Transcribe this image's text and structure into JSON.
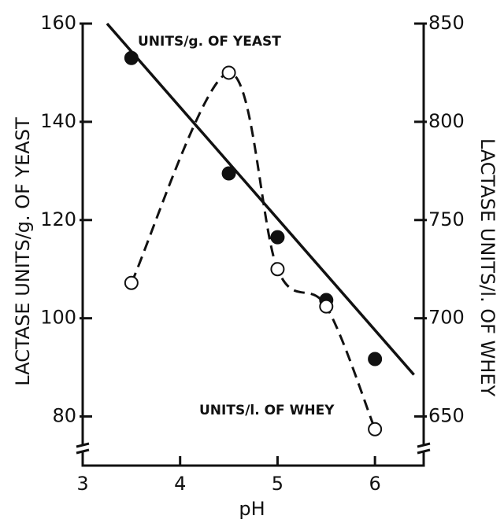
{
  "chart_data": {
    "type": "dual_axis_scatter",
    "x_label": "pH",
    "y_label": "LACTASE UNITS/g. OF YEAST",
    "y2_label": "LACTASE UNITS/l. OF WHEY",
    "xlim": [
      3,
      6.5
    ],
    "xticks": [
      3,
      4,
      5,
      6
    ],
    "ylim": [
      70,
      160
    ],
    "yticks": [
      80,
      100,
      120,
      140,
      160
    ],
    "y2lim": [
      625,
      850
    ],
    "y2ticks": [
      650,
      700,
      750,
      800,
      850
    ],
    "series": [
      {
        "name": "UNITS/g. OF YEAST",
        "color": "#111111",
        "marker": "filled",
        "line": "solid",
        "x": [
          3.5,
          4.5,
          5.0,
          5.5,
          6.0
        ],
        "values": [
          153,
          129.5,
          116.5,
          103.7,
          91.7
        ],
        "fit_line": {
          "x": [
            3.25,
            6.4
          ],
          "values": [
            160,
            88.5
          ]
        }
      },
      {
        "name": "UNITS/l. OF WHEY",
        "color": "#111111",
        "marker": "open",
        "line": "dashed",
        "axis": "y2",
        "x": [
          3.5,
          4.5,
          5.0,
          5.5,
          6.0
        ],
        "values": [
          718,
          825,
          725,
          706,
          643.5
        ]
      }
    ]
  }
}
